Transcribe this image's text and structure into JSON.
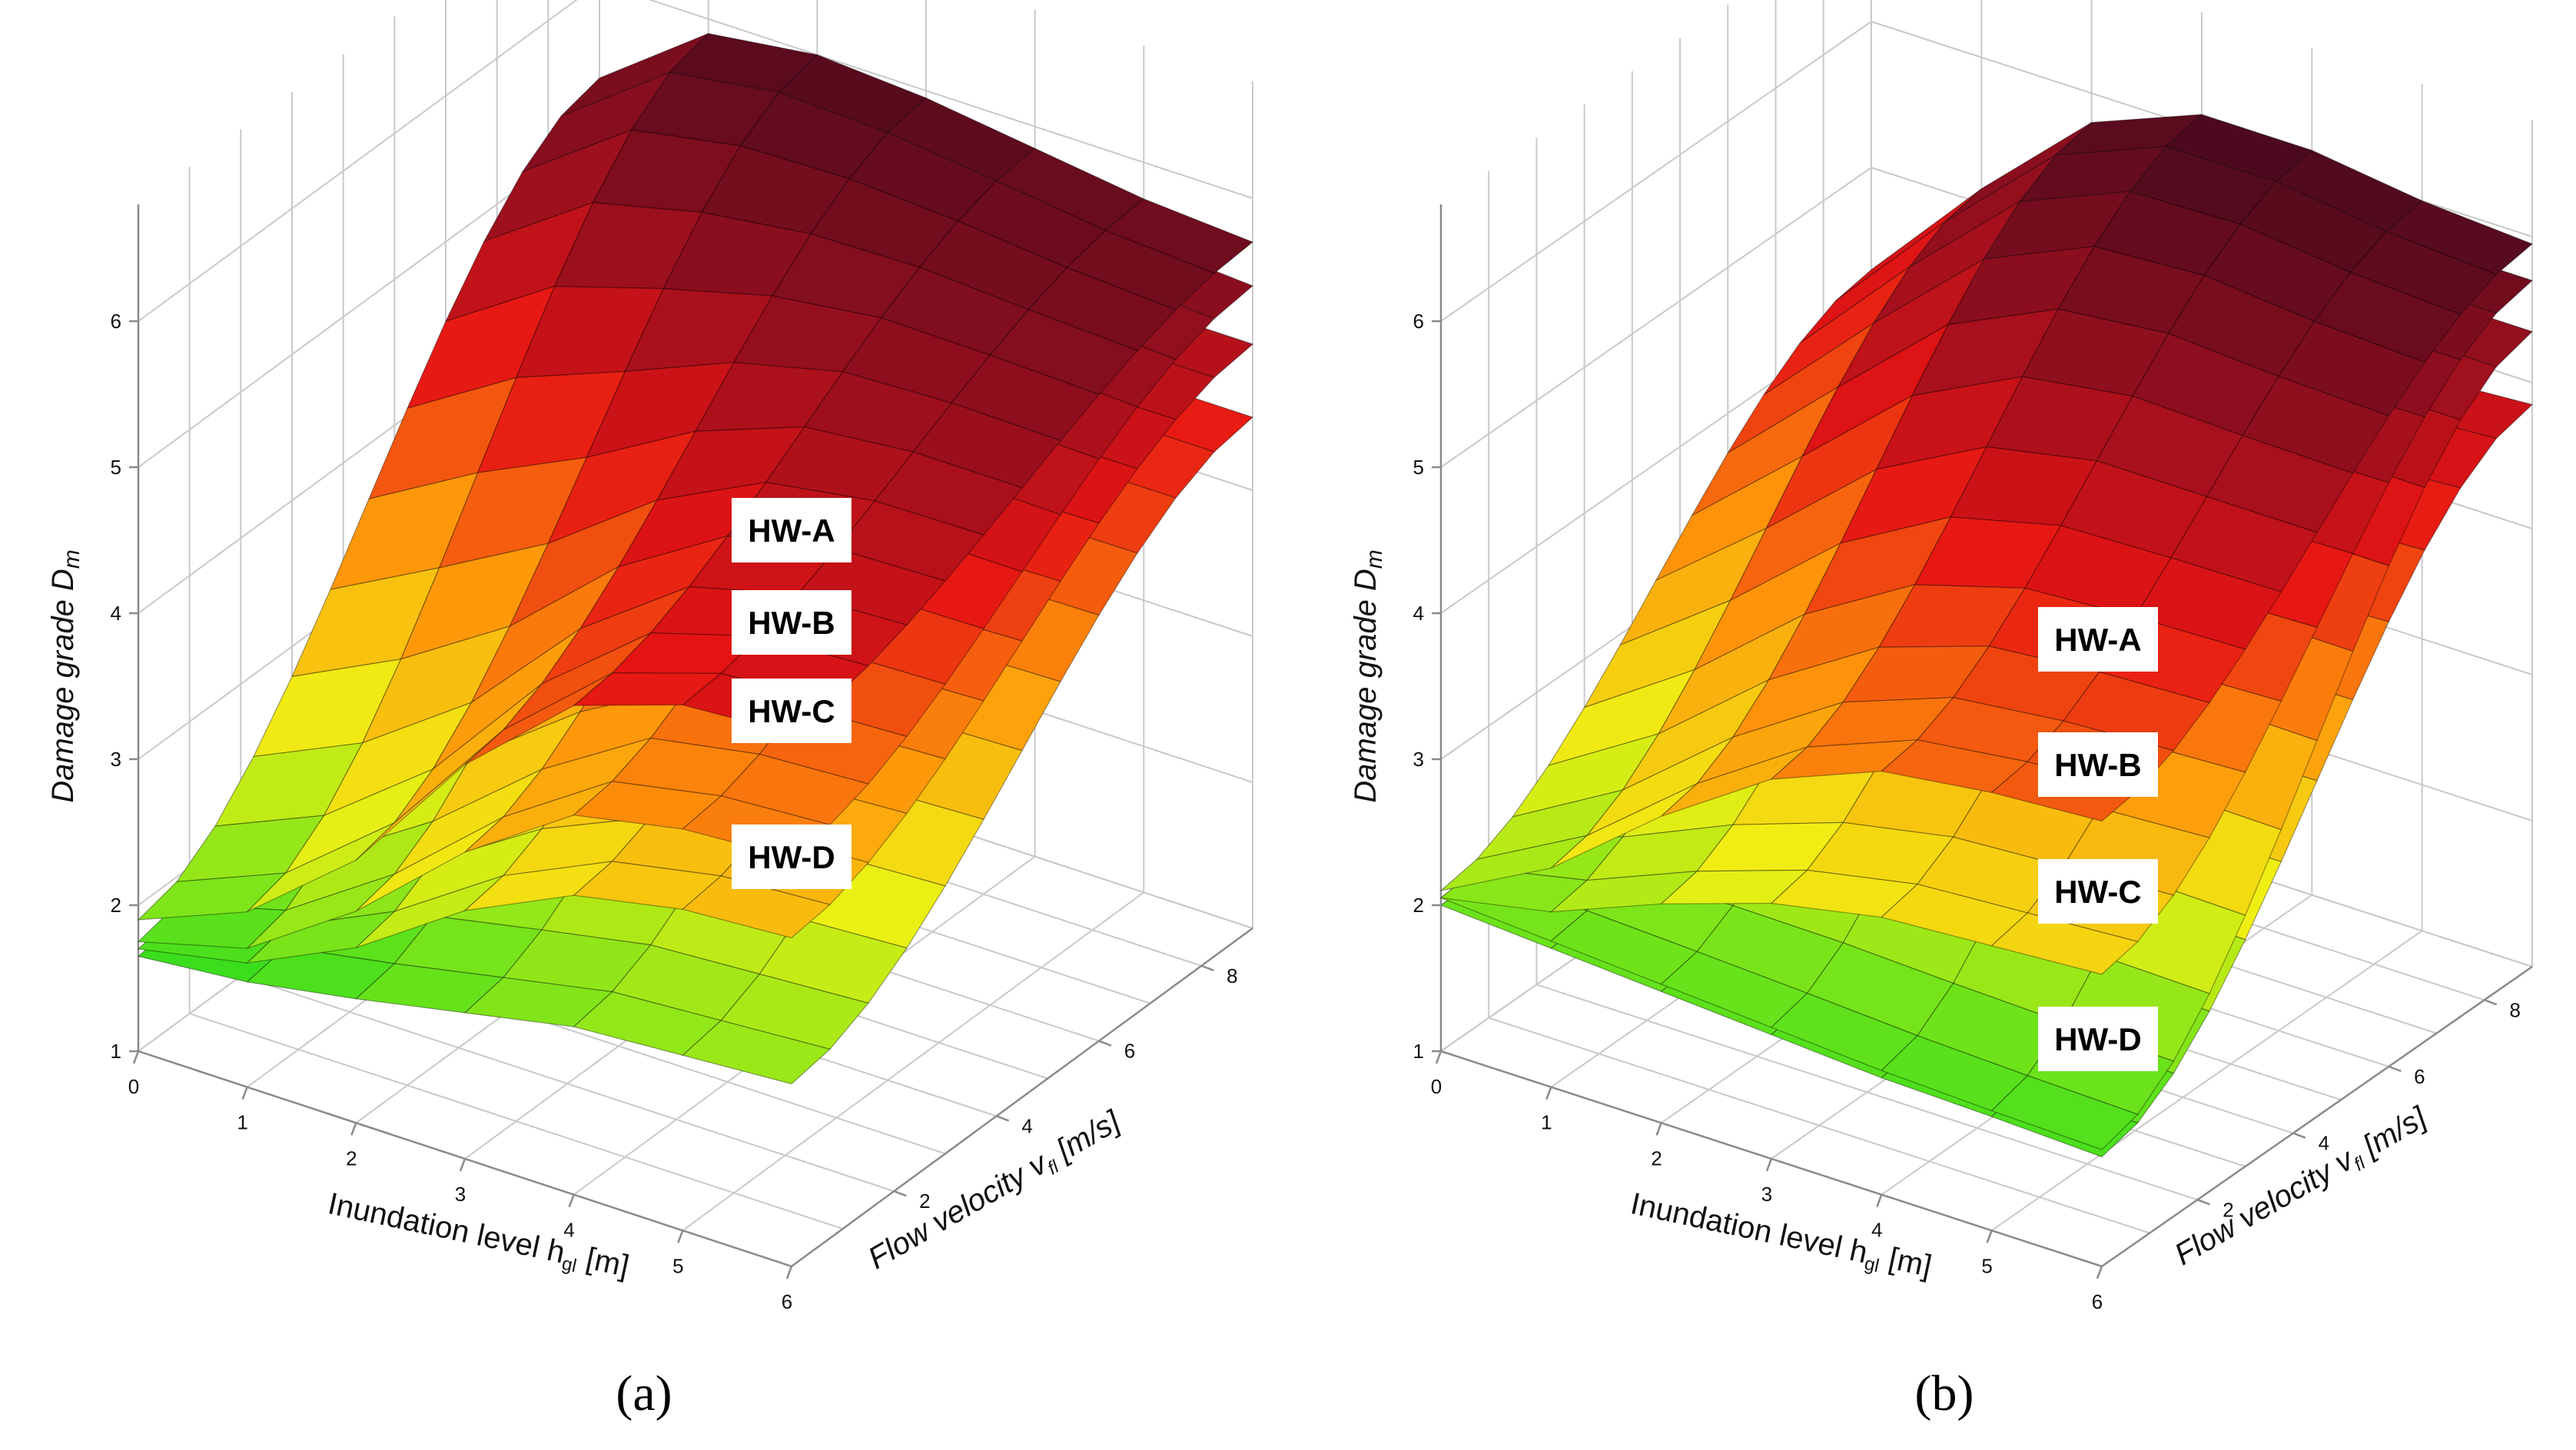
{
  "figure_caption": {
    "a": "(a)",
    "b": "(b)"
  },
  "chart_data": [
    {
      "type": "surface3d",
      "panel": "a",
      "title": "",
      "caption": "(a)",
      "zlabel": "Damage grade D",
      "zlabel_sub": "m",
      "xlabel": "Inundation level h",
      "xlabel_sub": "gl",
      "xlabel_unit": " [m]",
      "ylabel": "Flow velocity v",
      "ylabel_sub": "fl",
      "ylabel_unit": " [m/s]",
      "zticks": [
        "1",
        "2",
        "3",
        "4",
        "5",
        "6"
      ],
      "xticks": [
        "0",
        "1",
        "2",
        "3",
        "4",
        "5",
        "6"
      ],
      "yticks": [
        "2",
        "4",
        "6",
        "8"
      ],
      "zlim": [
        1,
        6
      ],
      "xlim": [
        0,
        6
      ],
      "ylim": [
        0,
        9
      ],
      "series": [
        {
          "name": "HW-A",
          "z_front": [
            1.9,
            2.2,
            2.8,
            3.7,
            4.35,
            4.6,
            4.65
          ],
          "z_back": [
            5.35,
            5.9,
            6.0,
            5.95,
            5.85,
            5.75,
            5.7
          ]
        },
        {
          "name": "HW-B",
          "z_front": [
            1.75,
            1.95,
            2.45,
            3.1,
            3.6,
            3.75,
            3.8
          ],
          "z_back": [
            5.0,
            5.4,
            5.55,
            5.55,
            5.5,
            5.45,
            5.4
          ]
        },
        {
          "name": "HW-C",
          "z_front": [
            1.7,
            1.85,
            2.2,
            2.7,
            3.05,
            3.2,
            3.25
          ],
          "z_back": [
            4.4,
            4.8,
            5.0,
            5.05,
            5.05,
            5.0,
            5.0
          ]
        },
        {
          "name": "HW-D",
          "z_front": [
            1.65,
            1.72,
            1.85,
            2.0,
            2.15,
            2.2,
            2.25
          ],
          "z_back": [
            3.6,
            4.0,
            4.3,
            4.45,
            4.5,
            4.5,
            4.5
          ]
        }
      ]
    },
    {
      "type": "surface3d",
      "panel": "b",
      "title": "",
      "caption": "(b)",
      "zlabel": "Damage grade D",
      "zlabel_sub": "m",
      "xlabel": "Inundation level h",
      "xlabel_sub": "gl",
      "xlabel_unit": " [m]",
      "ylabel": "Flow velocity v",
      "ylabel_sub": "fl",
      "ylabel_unit": " [m/s]",
      "zticks": [
        "1",
        "2",
        "3",
        "4",
        "5",
        "6"
      ],
      "xticks": [
        "0",
        "1",
        "2",
        "3",
        "4",
        "5",
        "6"
      ],
      "yticks": [
        "2",
        "4",
        "6",
        "8"
      ],
      "zlim": [
        1,
        6
      ],
      "xlim": [
        0,
        6
      ],
      "ylim": [
        0,
        9
      ],
      "series": [
        {
          "name": "HW-A",
          "z_front": [
            2.1,
            2.5,
            3.1,
            3.6,
            3.9,
            4.0,
            4.05
          ],
          "z_back": [
            4.3,
            5.1,
            5.8,
            6.1,
            6.1,
            6.0,
            5.95
          ]
        },
        {
          "name": "HW-B",
          "z_front": [
            2.05,
            2.2,
            2.5,
            2.75,
            2.9,
            2.95,
            3.0
          ],
          "z_back": [
            3.8,
            4.5,
            5.2,
            5.6,
            5.7,
            5.7,
            5.7
          ]
        },
        {
          "name": "HW-C",
          "z_front": [
            2.05,
            2.0,
            1.95,
            1.9,
            1.85,
            1.82,
            1.8
          ],
          "z_back": [
            3.2,
            3.9,
            4.6,
            5.1,
            5.3,
            5.35,
            5.35
          ]
        },
        {
          "name": "HW-D",
          "z_front": [
            2.0,
            1.95,
            1.9,
            1.85,
            1.8,
            1.78,
            1.75
          ],
          "z_back": [
            2.2,
            2.6,
            3.3,
            4.1,
            4.6,
            4.8,
            4.85
          ]
        }
      ]
    }
  ]
}
